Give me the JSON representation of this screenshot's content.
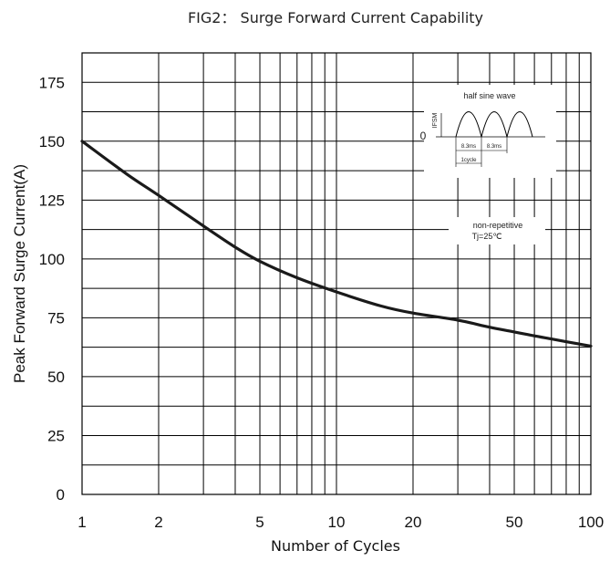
{
  "chart_data": {
    "type": "line",
    "title": "FIG2： Surge Forward Current Capability",
    "xlabel": "Number of Cycles",
    "ylabel": "Peak Forward Surge Current(A)",
    "x_scale": "log",
    "xlim": [
      1,
      100
    ],
    "ylim": [
      0,
      187.5
    ],
    "grid": true,
    "x_ticks": [
      1,
      2,
      5,
      10,
      20,
      50,
      100
    ],
    "x_tick_labels": [
      "1",
      "2",
      "5",
      "10",
      "20",
      "50",
      "100"
    ],
    "y_ticks": [
      0,
      25,
      50,
      75,
      100,
      125,
      150,
      175
    ],
    "y_tick_labels": [
      "0",
      "25",
      "50",
      "75",
      "100",
      "125",
      "150",
      "175"
    ],
    "series": [
      {
        "x": [
          1,
          1.5,
          2,
          3,
          4,
          5,
          7,
          10,
          15,
          20,
          30,
          40,
          50,
          70,
          100
        ],
        "y": [
          150,
          136,
          127,
          114,
          105,
          99,
          92,
          86,
          80,
          77,
          74,
          71,
          69,
          66,
          63
        ]
      }
    ],
    "inset": {
      "title": "half sine wave",
      "zero_label": "0",
      "ifsm_label": "IFSM",
      "period_label_1": "8.3ms",
      "period_label_2": "8.3ms",
      "cycle_label": "1cycle",
      "note_line1": "non-repetitive",
      "note_line2": "Tj=25℃"
    }
  }
}
